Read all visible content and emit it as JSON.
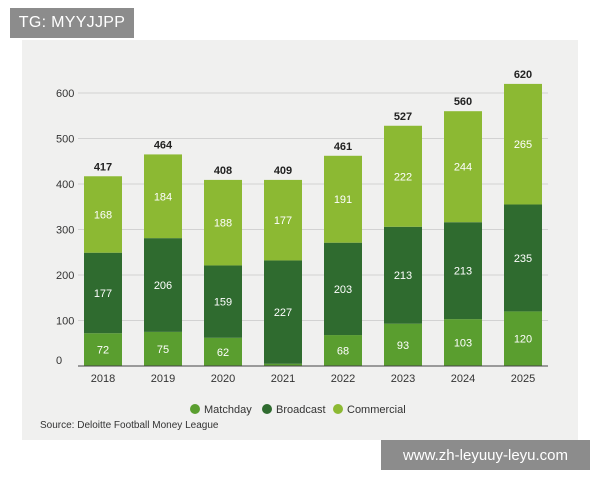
{
  "watermark_top": "TG: MYYJJPP",
  "watermark_bottom": "www.zh-leyuuy-leyu.com",
  "source": "Source: Deloitte Football Money League",
  "colors": {
    "matchday": "#5a9e2f",
    "broadcast": "#2f6b2f",
    "commercial": "#8cb933"
  },
  "chart_data": {
    "type": "bar",
    "stacked": true,
    "categories": [
      "2018",
      "2019",
      "2020",
      "2021",
      "2022",
      "2023",
      "2024",
      "2025"
    ],
    "series": [
      {
        "name": "Matchday",
        "values": [
          72,
          75,
          62,
          5,
          68,
          93,
          103,
          120
        ]
      },
      {
        "name": "Broadcast",
        "values": [
          177,
          206,
          159,
          227,
          203,
          213,
          213,
          235
        ]
      },
      {
        "name": "Commercial",
        "values": [
          168,
          184,
          188,
          177,
          191,
          222,
          244,
          265
        ]
      }
    ],
    "value_labels": [
      [
        "72",
        "177",
        "168"
      ],
      [
        "75",
        "206",
        "184"
      ],
      [
        "62",
        "159",
        "188"
      ],
      [
        "",
        "227",
        "177"
      ],
      [
        "68",
        "203",
        "191"
      ],
      [
        "93",
        "213",
        "222"
      ],
      [
        "103",
        "213",
        "244"
      ],
      [
        "120",
        "235",
        "265"
      ]
    ],
    "totals": [
      417,
      464,
      408,
      409,
      461,
      527,
      560,
      620
    ],
    "ylim": [
      0,
      600
    ],
    "yticks": [
      0,
      100,
      200,
      300,
      400,
      500,
      600
    ],
    "grid": true,
    "legend": "bottom"
  }
}
